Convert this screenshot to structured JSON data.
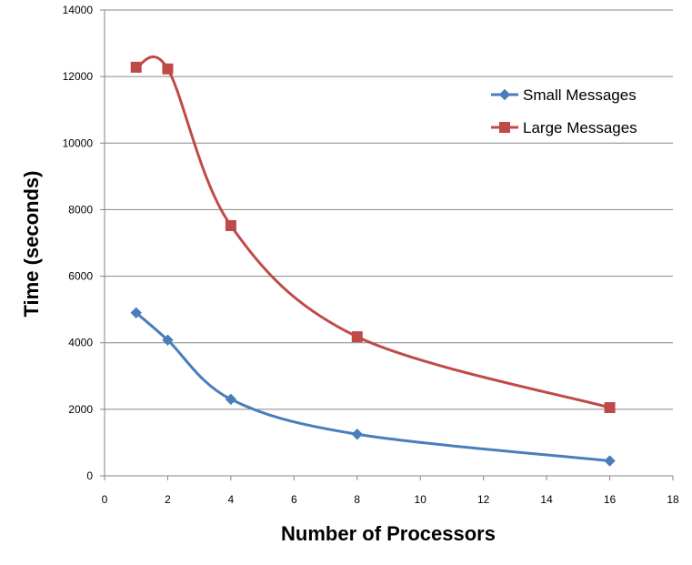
{
  "chart_data": {
    "type": "line",
    "title": "",
    "xlabel": "Number of Processors",
    "ylabel": "Time (seconds)",
    "xlim": [
      0,
      18
    ],
    "ylim": [
      0,
      14000
    ],
    "xticks": [
      0,
      2,
      4,
      6,
      8,
      10,
      12,
      14,
      16,
      18
    ],
    "yticks": [
      0,
      2000,
      4000,
      6000,
      8000,
      10000,
      12000,
      14000
    ],
    "xtick_labels": [
      "0",
      "2",
      "4",
      "6",
      "8",
      "10",
      "12",
      "14",
      "16",
      "18"
    ],
    "ytick_labels": [
      "0",
      "2000",
      "4000",
      "6000",
      "8000",
      "10000",
      "12000",
      "14000"
    ],
    "grid": "horizontal",
    "smooth": true,
    "legend_position": "top-right",
    "series": [
      {
        "name": "Small Messages",
        "color": "#4A7EBB",
        "marker": "diamond",
        "points": [
          {
            "x": 1,
            "y": 4900
          },
          {
            "x": 2,
            "y": 4080
          },
          {
            "x": 4,
            "y": 2300
          },
          {
            "x": 8,
            "y": 1250
          },
          {
            "x": 16,
            "y": 450
          }
        ]
      },
      {
        "name": "Large Messages",
        "color": "#BE4B48",
        "marker": "square",
        "points": [
          {
            "x": 1,
            "y": 12280
          },
          {
            "x": 2,
            "y": 12230
          },
          {
            "x": 4,
            "y": 7520
          },
          {
            "x": 8,
            "y": 4180
          },
          {
            "x": 16,
            "y": 2050
          }
        ]
      }
    ]
  }
}
